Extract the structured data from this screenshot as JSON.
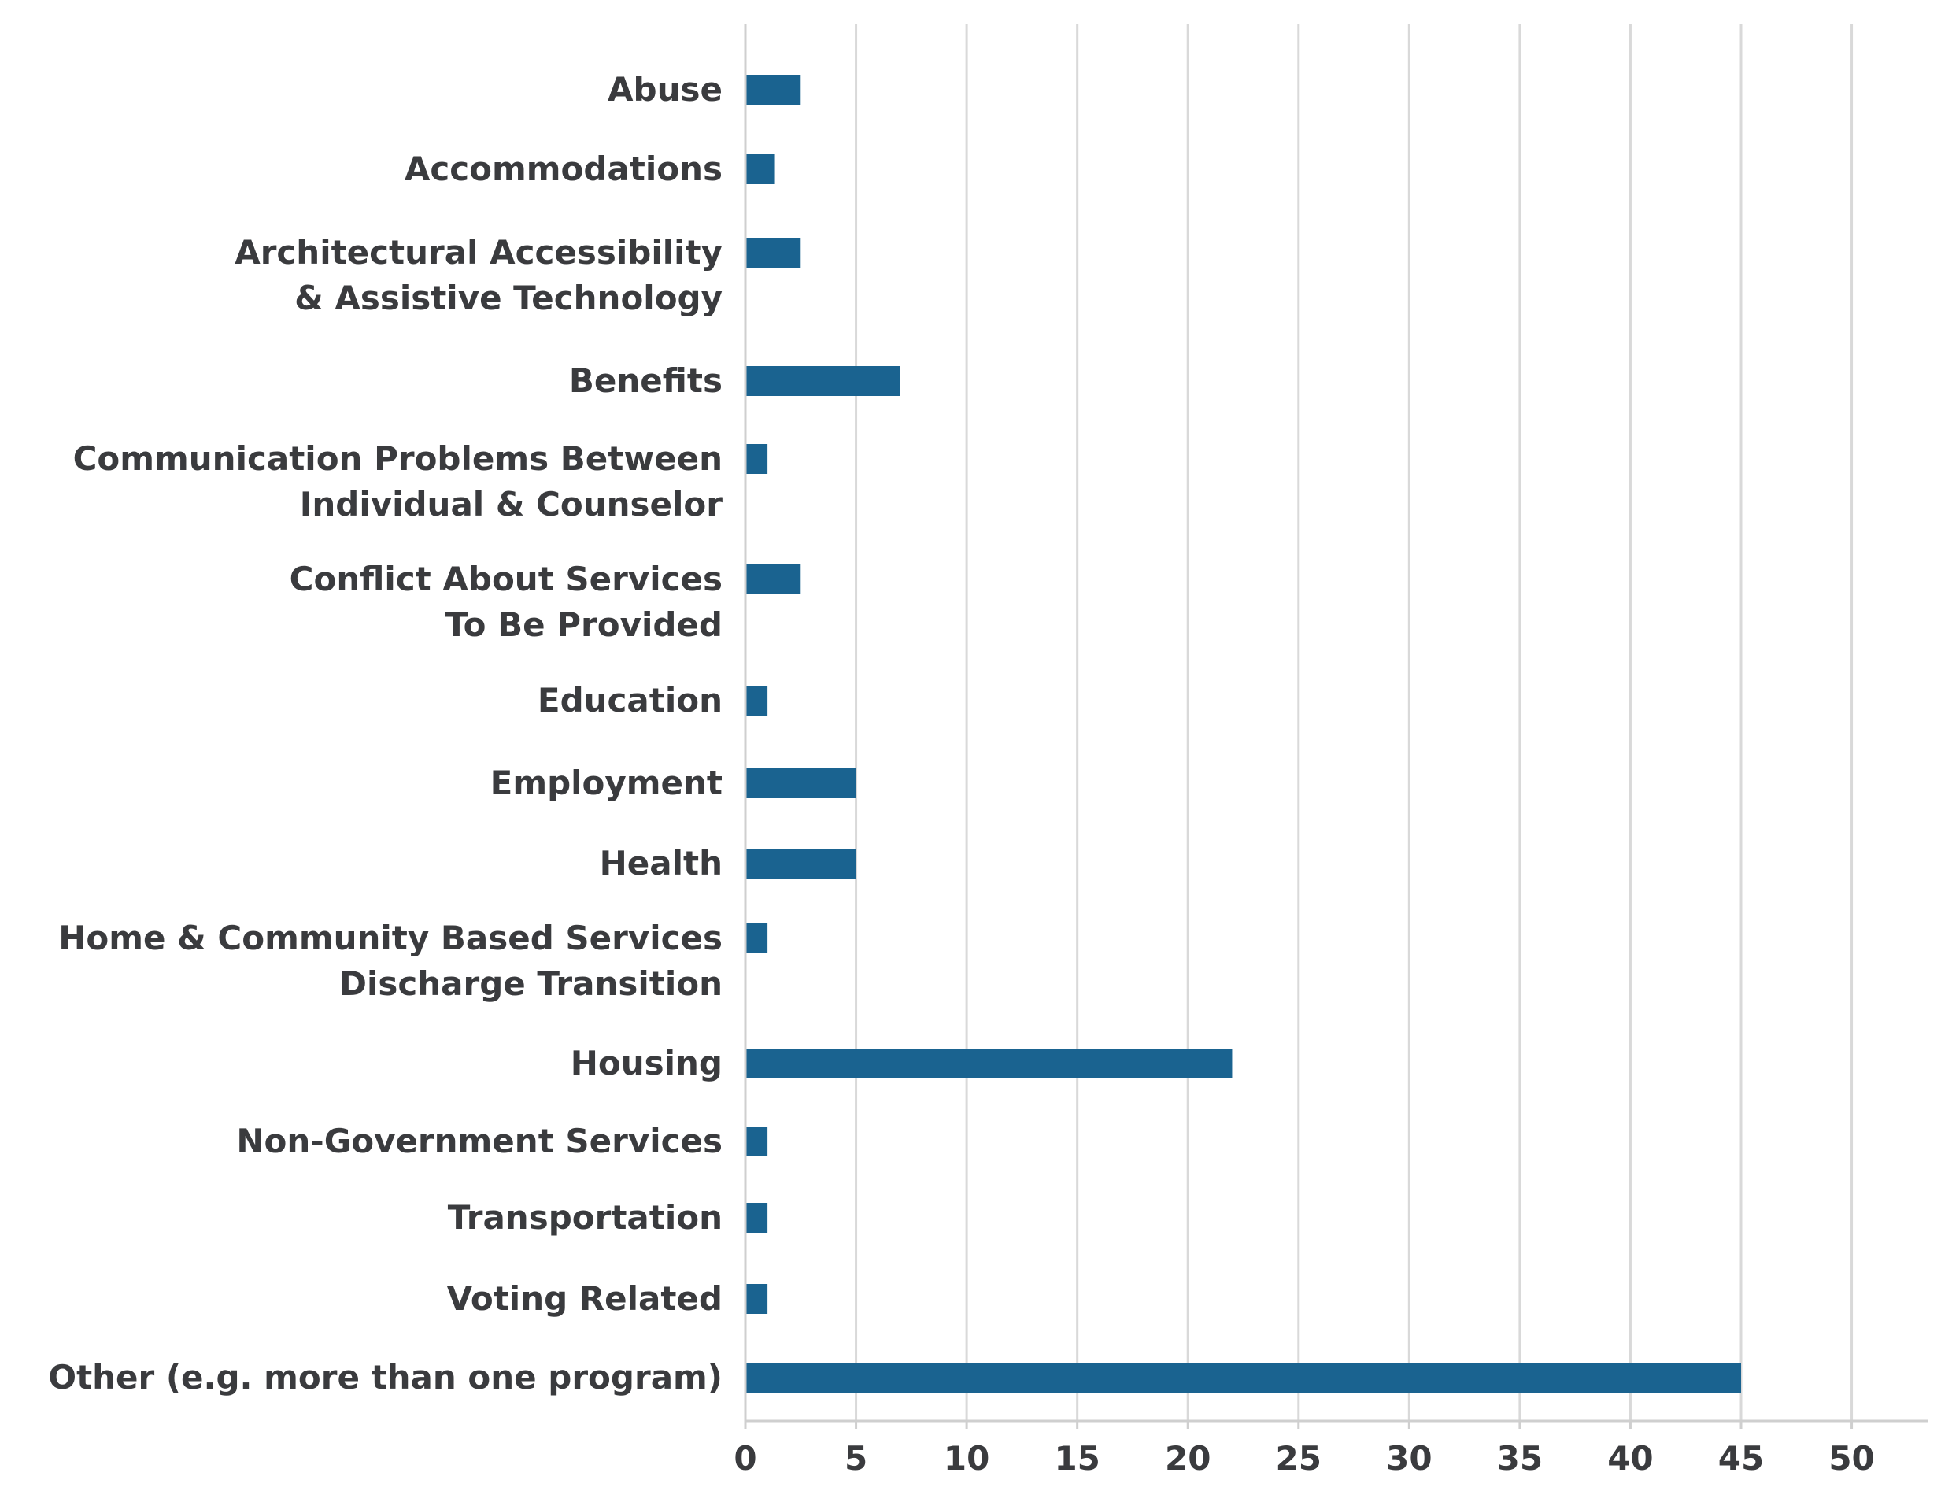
{
  "chart_data": {
    "type": "bar",
    "orientation": "horizontal",
    "categories": [
      [
        "Abuse"
      ],
      [
        "Accommodations"
      ],
      [
        "Architectural Accessibility",
        "& Assistive Technology"
      ],
      [
        "Benefits"
      ],
      [
        "Communication Problems Between",
        "Individual & Counselor"
      ],
      [
        "Conflict About Services",
        "To Be Provided"
      ],
      [
        "Education"
      ],
      [
        "Employment"
      ],
      [
        "Health"
      ],
      [
        "Home & Community Based Services",
        "Discharge Transition"
      ],
      [
        "Housing"
      ],
      [
        "Non-Government Services"
      ],
      [
        "Transportation"
      ],
      [
        "Voting Related"
      ],
      [
        "Other (e.g. more than one program)"
      ]
    ],
    "values": [
      2.5,
      1.3,
      2.5,
      7,
      1,
      2.5,
      1,
      5,
      5,
      1,
      22,
      1,
      1,
      1,
      45
    ],
    "xlim": [
      0,
      53
    ],
    "xticks": [
      0,
      5,
      10,
      15,
      20,
      25,
      30,
      35,
      40,
      45,
      50
    ],
    "grid": "vertical",
    "bar_color": "#1a6390",
    "grid_color": "#d9d9d9",
    "axis_color": "#cfcfcf",
    "text_color": "#3a3b3e"
  }
}
